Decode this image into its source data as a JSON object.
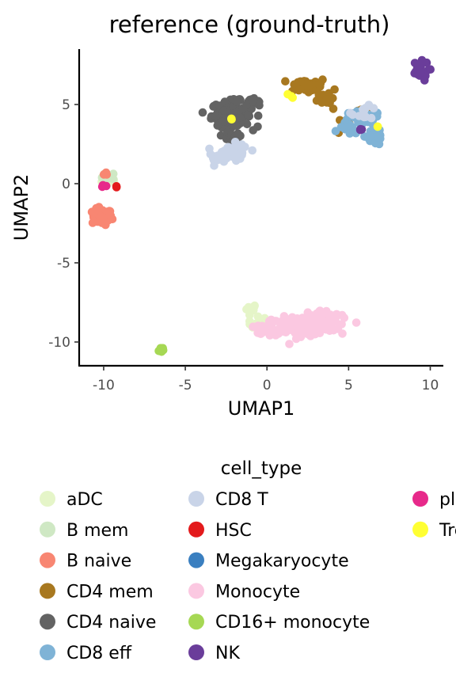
{
  "chart_data": {
    "type": "scatter",
    "title": "reference (ground-truth)",
    "xlabel": "UMAP1",
    "ylabel": "UMAP2",
    "xlim": [
      -11.5,
      10.8
    ],
    "ylim": [
      -11.5,
      8.5
    ],
    "xticks": [
      -10,
      -5,
      0,
      5,
      10
    ],
    "yticks": [
      -10,
      -5,
      0,
      5
    ],
    "grid": false,
    "legend": {
      "title": "cell_type",
      "placement": "bottom"
    },
    "series": [
      {
        "name": "aDC",
        "color": "#e5f5c8",
        "clusters": [
          {
            "cx": -9.5,
            "cy": 0.2,
            "sx": 0.3,
            "sy": 0.15,
            "n": 10
          },
          {
            "cx": -1.0,
            "cy": -7.9,
            "sx": 0.2,
            "sy": 0.15,
            "n": 10
          },
          {
            "cx": -0.4,
            "cy": -8.8,
            "sx": 0.4,
            "sy": 0.2,
            "n": 12
          }
        ]
      },
      {
        "name": "B mem",
        "color": "#cfe8c4",
        "clusters": [
          {
            "cx": -9.7,
            "cy": 0.4,
            "sx": 0.2,
            "sy": 0.15,
            "n": 10
          }
        ]
      },
      {
        "name": "B naive",
        "color": "#f88672",
        "clusters": [
          {
            "cx": -10.1,
            "cy": -2.1,
            "sx": 0.3,
            "sy": 0.25,
            "n": 70
          },
          {
            "cx": -10.0,
            "cy": 0.6,
            "sx": 0.1,
            "sy": 0.1,
            "n": 3
          }
        ]
      },
      {
        "name": "CD4 mem",
        "color": "#a87820",
        "clusters": [
          {
            "cx": 2.5,
            "cy": 6.2,
            "sx": 0.6,
            "sy": 0.25,
            "n": 40
          },
          {
            "cx": 3.7,
            "cy": 5.5,
            "sx": 0.3,
            "sy": 0.3,
            "n": 15
          },
          {
            "cx": 5.8,
            "cy": 4.5,
            "sx": 0.5,
            "sy": 0.2,
            "n": 14
          },
          {
            "cx": 4.6,
            "cy": 3.9,
            "sx": 0.2,
            "sy": 0.3,
            "n": 6
          }
        ]
      },
      {
        "name": "CD4 naive",
        "color": "#636363",
        "clusters": [
          {
            "cx": -2.2,
            "cy": 4.4,
            "sx": 0.6,
            "sy": 0.4,
            "n": 130
          },
          {
            "cx": -0.9,
            "cy": 5.0,
            "sx": 0.4,
            "sy": 0.2,
            "n": 18
          },
          {
            "cx": -2.0,
            "cy": 3.0,
            "sx": 0.3,
            "sy": 0.3,
            "n": 16
          }
        ]
      },
      {
        "name": "CD8 eff",
        "color": "#7fb3d6",
        "clusters": [
          {
            "cx": 6.6,
            "cy": 3.0,
            "sx": 0.3,
            "sy": 0.3,
            "n": 30
          },
          {
            "cx": 5.8,
            "cy": 4.0,
            "sx": 0.6,
            "sy": 0.3,
            "n": 30
          },
          {
            "cx": 5.0,
            "cy": 3.5,
            "sx": 0.3,
            "sy": 0.2,
            "n": 10
          }
        ]
      },
      {
        "name": "CD8 T",
        "color": "#c9d4e8",
        "clusters": [
          {
            "cx": -2.1,
            "cy": 1.9,
            "sx": 0.5,
            "sy": 0.3,
            "n": 45
          },
          {
            "cx": -3.0,
            "cy": 1.7,
            "sx": 0.3,
            "sy": 0.15,
            "n": 10
          },
          {
            "cx": 6.0,
            "cy": 4.5,
            "sx": 0.4,
            "sy": 0.2,
            "n": 12
          }
        ]
      },
      {
        "name": "HSC",
        "color": "#e31a1c",
        "clusters": [
          {
            "cx": -9.2,
            "cy": -0.2,
            "sx": 0.05,
            "sy": 0.05,
            "n": 2
          }
        ]
      },
      {
        "name": "Megakaryocyte",
        "color": "#3a7fc0",
        "clusters": []
      },
      {
        "name": "Monocyte",
        "color": "#fbc8e1",
        "clusters": [
          {
            "cx": 2.0,
            "cy": -9.0,
            "sx": 1.1,
            "sy": 0.28,
            "n": 170
          },
          {
            "cx": 3.3,
            "cy": -8.5,
            "sx": 0.6,
            "sy": 0.25,
            "n": 50
          },
          {
            "cx": 0.2,
            "cy": -9.2,
            "sx": 0.4,
            "sy": 0.15,
            "n": 20
          }
        ]
      },
      {
        "name": "CD16+ monocyte",
        "color": "#a6d854",
        "clusters": [
          {
            "cx": -6.5,
            "cy": -10.5,
            "sx": 0.12,
            "sy": 0.1,
            "n": 10
          }
        ]
      },
      {
        "name": "NK",
        "color": "#6a3d9a",
        "clusters": [
          {
            "cx": 9.3,
            "cy": 7.1,
            "sx": 0.3,
            "sy": 0.3,
            "n": 25
          },
          {
            "cx": 5.7,
            "cy": 3.4,
            "sx": 0.1,
            "sy": 0.05,
            "n": 3
          }
        ]
      },
      {
        "name": "plasmacytoid DC",
        "color": "#e7298a",
        "clusters": [
          {
            "cx": -10.0,
            "cy": -0.2,
            "sx": 0.1,
            "sy": 0.1,
            "n": 3
          }
        ]
      },
      {
        "name": "Treg",
        "color": "#ffff33",
        "clusters": [
          {
            "cx": 1.4,
            "cy": 5.5,
            "sx": 0.1,
            "sy": 0.1,
            "n": 3
          },
          {
            "cx": -2.2,
            "cy": 4.1,
            "sx": 0.05,
            "sy": 0.05,
            "n": 2
          },
          {
            "cx": 6.8,
            "cy": 3.6,
            "sx": 0.05,
            "sy": 0.05,
            "n": 2
          }
        ]
      }
    ]
  }
}
